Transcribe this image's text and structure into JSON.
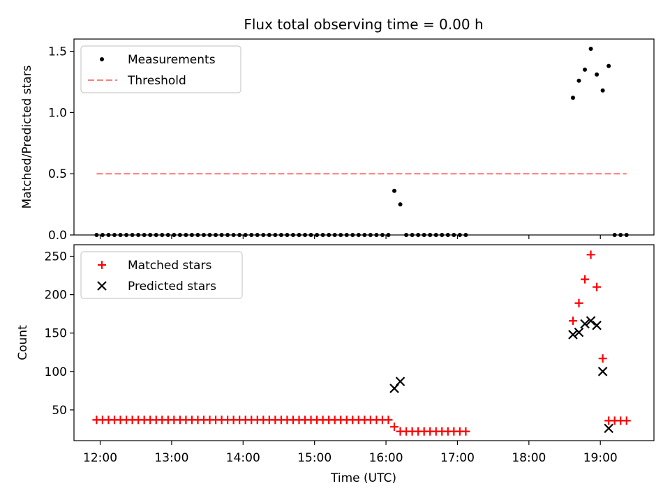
{
  "figure": {
    "title": "Flux total observing time = 0.00 h",
    "xlabel": "Time (UTC)"
  },
  "chart_data": [
    {
      "type": "scatter",
      "ylabel": "Matched/Predicted stars",
      "xlim": [
        "11:38",
        "19:45"
      ],
      "ylim": [
        0,
        1.6
      ],
      "yticks": [
        0,
        0.5,
        1.0,
        1.5
      ],
      "ytick_labels": [
        "0.0",
        "0.5",
        "1.0",
        "1.5"
      ],
      "legend_position": "top-left",
      "series": [
        {
          "name": "Measurements",
          "marker": "dot",
          "color": "#000000",
          "points": [
            [
              "11:57",
              0
            ],
            [
              "12:02",
              0
            ],
            [
              "12:07",
              0
            ],
            [
              "12:12",
              0
            ],
            [
              "12:17",
              0
            ],
            [
              "12:22",
              0
            ],
            [
              "12:27",
              0
            ],
            [
              "12:32",
              0
            ],
            [
              "12:37",
              0
            ],
            [
              "12:42",
              0
            ],
            [
              "12:47",
              0
            ],
            [
              "12:52",
              0
            ],
            [
              "12:57",
              0
            ],
            [
              "13:02",
              0
            ],
            [
              "13:07",
              0
            ],
            [
              "13:12",
              0
            ],
            [
              "13:17",
              0
            ],
            [
              "13:22",
              0
            ],
            [
              "13:27",
              0
            ],
            [
              "13:32",
              0
            ],
            [
              "13:37",
              0
            ],
            [
              "13:42",
              0
            ],
            [
              "13:47",
              0
            ],
            [
              "13:52",
              0
            ],
            [
              "13:57",
              0
            ],
            [
              "14:02",
              0
            ],
            [
              "14:07",
              0
            ],
            [
              "14:12",
              0
            ],
            [
              "14:17",
              0
            ],
            [
              "14:22",
              0
            ],
            [
              "14:27",
              0
            ],
            [
              "14:32",
              0
            ],
            [
              "14:37",
              0
            ],
            [
              "14:42",
              0
            ],
            [
              "14:47",
              0
            ],
            [
              "14:52",
              0
            ],
            [
              "14:57",
              0
            ],
            [
              "15:02",
              0
            ],
            [
              "15:07",
              0
            ],
            [
              "15:12",
              0
            ],
            [
              "15:17",
              0
            ],
            [
              "15:22",
              0
            ],
            [
              "15:27",
              0
            ],
            [
              "15:32",
              0
            ],
            [
              "15:37",
              0
            ],
            [
              "15:42",
              0
            ],
            [
              "15:47",
              0
            ],
            [
              "15:52",
              0
            ],
            [
              "15:57",
              0
            ],
            [
              "16:02",
              0
            ],
            [
              "16:07",
              0.36
            ],
            [
              "16:12",
              0.25
            ],
            [
              "16:17",
              0
            ],
            [
              "16:22",
              0
            ],
            [
              "16:27",
              0
            ],
            [
              "16:32",
              0
            ],
            [
              "16:37",
              0
            ],
            [
              "16:42",
              0
            ],
            [
              "16:47",
              0
            ],
            [
              "16:52",
              0
            ],
            [
              "16:57",
              0
            ],
            [
              "17:02",
              0
            ],
            [
              "17:07",
              0
            ],
            [
              "18:37",
              1.12
            ],
            [
              "18:42",
              1.26
            ],
            [
              "18:47",
              1.35
            ],
            [
              "18:52",
              1.52
            ],
            [
              "18:57",
              1.31
            ],
            [
              "19:02",
              1.18
            ],
            [
              "19:07",
              1.38
            ],
            [
              "19:12",
              0
            ],
            [
              "19:17",
              0
            ],
            [
              "19:22",
              0
            ]
          ]
        },
        {
          "name": "Threshold",
          "line": "dashed",
          "color": "#ff8080",
          "points": [
            [
              "11:57",
              0.5
            ],
            [
              "19:22",
              0.5
            ]
          ]
        }
      ]
    },
    {
      "type": "scatter",
      "ylabel": "Count",
      "xlim": [
        "11:38",
        "19:45"
      ],
      "ylim": [
        10,
        265
      ],
      "yticks": [
        50,
        100,
        150,
        200,
        250
      ],
      "ytick_labels": [
        "50",
        "100",
        "150",
        "200",
        "250"
      ],
      "xticks": [
        "12:00",
        "13:00",
        "14:00",
        "15:00",
        "16:00",
        "17:00",
        "18:00",
        "19:00"
      ],
      "legend_position": "top-left",
      "series": [
        {
          "name": "Matched stars",
          "marker": "plus",
          "color": "#ff0000",
          "points": [
            [
              "11:57",
              37
            ],
            [
              "12:02",
              37
            ],
            [
              "12:07",
              37
            ],
            [
              "12:12",
              37
            ],
            [
              "12:17",
              37
            ],
            [
              "12:22",
              37
            ],
            [
              "12:27",
              37
            ],
            [
              "12:32",
              37
            ],
            [
              "12:37",
              37
            ],
            [
              "12:42",
              37
            ],
            [
              "12:47",
              37
            ],
            [
              "12:52",
              37
            ],
            [
              "12:57",
              37
            ],
            [
              "13:02",
              37
            ],
            [
              "13:07",
              37
            ],
            [
              "13:12",
              37
            ],
            [
              "13:17",
              37
            ],
            [
              "13:22",
              37
            ],
            [
              "13:27",
              37
            ],
            [
              "13:32",
              37
            ],
            [
              "13:37",
              37
            ],
            [
              "13:42",
              37
            ],
            [
              "13:47",
              37
            ],
            [
              "13:52",
              37
            ],
            [
              "13:57",
              37
            ],
            [
              "14:02",
              37
            ],
            [
              "14:07",
              37
            ],
            [
              "14:12",
              37
            ],
            [
              "14:17",
              37
            ],
            [
              "14:22",
              37
            ],
            [
              "14:27",
              37
            ],
            [
              "14:32",
              37
            ],
            [
              "14:37",
              37
            ],
            [
              "14:42",
              37
            ],
            [
              "14:47",
              37
            ],
            [
              "14:52",
              37
            ],
            [
              "14:57",
              37
            ],
            [
              "15:02",
              37
            ],
            [
              "15:07",
              37
            ],
            [
              "15:12",
              37
            ],
            [
              "15:17",
              37
            ],
            [
              "15:22",
              37
            ],
            [
              "15:27",
              37
            ],
            [
              "15:32",
              37
            ],
            [
              "15:37",
              37
            ],
            [
              "15:42",
              37
            ],
            [
              "15:47",
              37
            ],
            [
              "15:52",
              37
            ],
            [
              "15:57",
              37
            ],
            [
              "16:02",
              37
            ],
            [
              "16:07",
              28
            ],
            [
              "16:12",
              22
            ],
            [
              "16:17",
              22
            ],
            [
              "16:22",
              22
            ],
            [
              "16:27",
              22
            ],
            [
              "16:32",
              22
            ],
            [
              "16:37",
              22
            ],
            [
              "16:42",
              22
            ],
            [
              "16:47",
              22
            ],
            [
              "16:52",
              22
            ],
            [
              "16:57",
              22
            ],
            [
              "17:02",
              22
            ],
            [
              "17:07",
              22
            ],
            [
              "18:37",
              166
            ],
            [
              "18:42",
              189
            ],
            [
              "18:47",
              220
            ],
            [
              "18:52",
              252
            ],
            [
              "18:57",
              210
            ],
            [
              "19:02",
              117
            ],
            [
              "19:07",
              36
            ],
            [
              "19:12",
              36
            ],
            [
              "19:17",
              36
            ],
            [
              "19:22",
              36
            ]
          ]
        },
        {
          "name": "Predicted stars",
          "marker": "x",
          "color": "#000000",
          "points": [
            [
              "16:07",
              78
            ],
            [
              "16:12",
              87
            ],
            [
              "18:37",
              148
            ],
            [
              "18:42",
              151
            ],
            [
              "18:47",
              162
            ],
            [
              "18:52",
              166
            ],
            [
              "18:57",
              160
            ],
            [
              "19:02",
              100
            ],
            [
              "19:07",
              26
            ]
          ]
        }
      ]
    }
  ]
}
